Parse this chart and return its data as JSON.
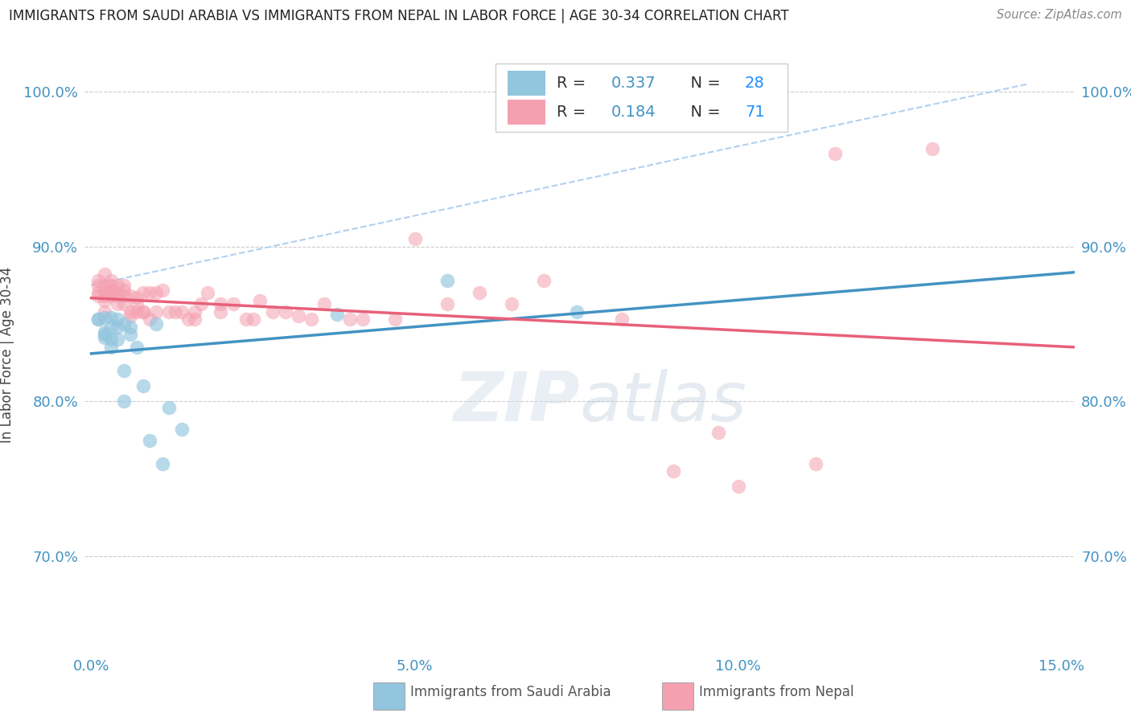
{
  "title": "IMMIGRANTS FROM SAUDI ARABIA VS IMMIGRANTS FROM NEPAL IN LABOR FORCE | AGE 30-34 CORRELATION CHART",
  "source": "Source: ZipAtlas.com",
  "ylabel": "In Labor Force | Age 30-34",
  "xlim": [
    -0.001,
    0.152
  ],
  "ylim": [
    0.638,
    1.022
  ],
  "xtick_vals": [
    0.0,
    0.05,
    0.1,
    0.15
  ],
  "xtick_labels": [
    "0.0%",
    "5.0%",
    "10.0%",
    "15.0%"
  ],
  "ytick_vals": [
    0.7,
    0.8,
    0.9,
    1.0
  ],
  "ytick_labels": [
    "70.0%",
    "80.0%",
    "90.0%",
    "100.0%"
  ],
  "saudi_color": "#92C5DE",
  "nepal_color": "#F4A0B0",
  "saudi_line_color": "#4393C3",
  "nepal_line_color": "#E8607A",
  "dash_color": "#AACCEE",
  "saudi_R": "0.337",
  "saudi_N": "28",
  "nepal_R": "0.184",
  "nepal_N": "71",
  "legend_R_color": "#4393C3",
  "legend_N_color": "#1E90FF",
  "watermark_color": "#C8D8E8",
  "grid_color": "#CCCCCC",
  "saudi_x": [
    0.001,
    0.001,
    0.002,
    0.002,
    0.002,
    0.002,
    0.003,
    0.003,
    0.003,
    0.003,
    0.004,
    0.004,
    0.004,
    0.005,
    0.005,
    0.005,
    0.006,
    0.006,
    0.007,
    0.008,
    0.009,
    0.01,
    0.011,
    0.012,
    0.014,
    0.038,
    0.055,
    0.075
  ],
  "saudi_y": [
    0.853,
    0.853,
    0.854,
    0.845,
    0.843,
    0.841,
    0.848,
    0.854,
    0.84,
    0.835,
    0.853,
    0.848,
    0.84,
    0.85,
    0.82,
    0.8,
    0.848,
    0.843,
    0.835,
    0.81,
    0.775,
    0.85,
    0.76,
    0.796,
    0.782,
    0.856,
    0.878,
    0.858
  ],
  "nepal_x": [
    0.001,
    0.001,
    0.001,
    0.001,
    0.002,
    0.002,
    0.002,
    0.002,
    0.002,
    0.002,
    0.003,
    0.003,
    0.003,
    0.003,
    0.003,
    0.004,
    0.004,
    0.004,
    0.004,
    0.005,
    0.005,
    0.005,
    0.005,
    0.006,
    0.006,
    0.006,
    0.007,
    0.007,
    0.007,
    0.008,
    0.008,
    0.008,
    0.009,
    0.009,
    0.01,
    0.01,
    0.011,
    0.012,
    0.013,
    0.014,
    0.015,
    0.016,
    0.016,
    0.017,
    0.018,
    0.02,
    0.02,
    0.022,
    0.024,
    0.025,
    0.026,
    0.028,
    0.03,
    0.032,
    0.034,
    0.036,
    0.04,
    0.042,
    0.047,
    0.05,
    0.055,
    0.06,
    0.065,
    0.07,
    0.082,
    0.09,
    0.097,
    0.1,
    0.112,
    0.115,
    0.13
  ],
  "nepal_y": [
    0.87,
    0.875,
    0.868,
    0.878,
    0.858,
    0.868,
    0.87,
    0.875,
    0.865,
    0.882,
    0.87,
    0.872,
    0.868,
    0.875,
    0.878,
    0.868,
    0.875,
    0.87,
    0.863,
    0.868,
    0.863,
    0.875,
    0.872,
    0.858,
    0.868,
    0.855,
    0.863,
    0.867,
    0.858,
    0.858,
    0.87,
    0.858,
    0.87,
    0.853,
    0.87,
    0.858,
    0.872,
    0.858,
    0.858,
    0.858,
    0.853,
    0.853,
    0.858,
    0.863,
    0.87,
    0.863,
    0.858,
    0.863,
    0.853,
    0.853,
    0.865,
    0.858,
    0.858,
    0.855,
    0.853,
    0.863,
    0.853,
    0.853,
    0.853,
    0.905,
    0.863,
    0.87,
    0.863,
    0.878,
    0.853,
    0.755,
    0.78,
    0.745,
    0.76,
    0.96,
    0.963
  ]
}
